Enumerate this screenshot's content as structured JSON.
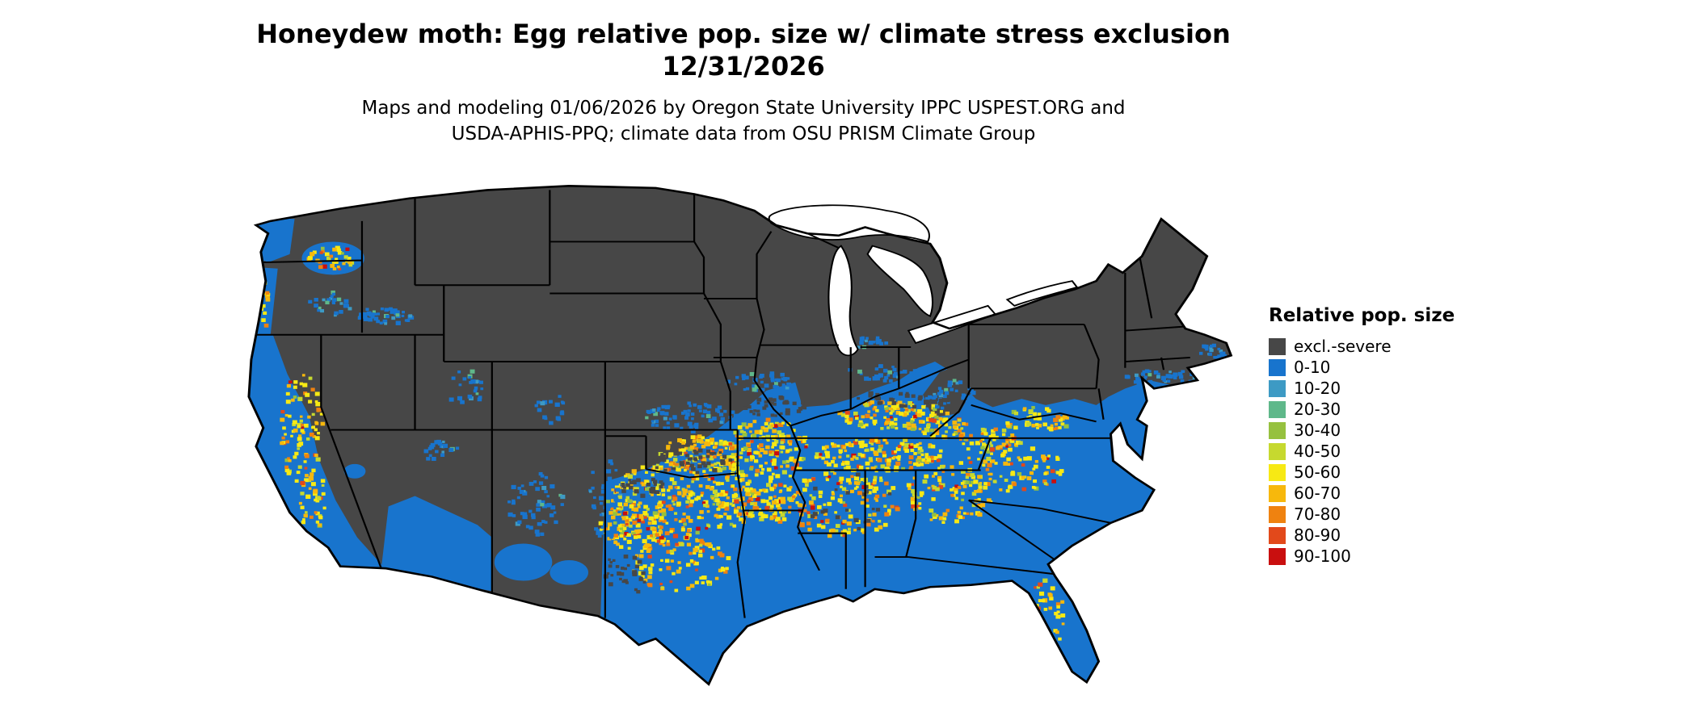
{
  "title": {
    "line1": "Honeydew moth: Egg relative pop. size w/ climate stress exclusion",
    "line2": "12/31/2026"
  },
  "subtitle": {
    "line1": "Maps and modeling 01/06/2026 by Oregon State University IPPC USPEST.ORG and",
    "line2": "USDA-APHIS-PPQ; climate data from OSU PRISM Climate Group"
  },
  "legend": {
    "title": "Relative pop. size",
    "entries": [
      {
        "label": "excl.-severe",
        "color": "#474747"
      },
      {
        "label": "0-10",
        "color": "#1874CD"
      },
      {
        "label": "10-20",
        "color": "#3D9AC4"
      },
      {
        "label": "20-30",
        "color": "#5FB88A"
      },
      {
        "label": "30-40",
        "color": "#96C13F"
      },
      {
        "label": "40-50",
        "color": "#C6D92F"
      },
      {
        "label": "50-60",
        "color": "#F7E914"
      },
      {
        "label": "60-70",
        "color": "#F7B80C"
      },
      {
        "label": "70-80",
        "color": "#EF8210"
      },
      {
        "label": "80-90",
        "color": "#E2491B"
      },
      {
        "label": "90-100",
        "color": "#C90F0F"
      }
    ]
  },
  "map": {
    "background": "#FFFFFF",
    "state_border_color": "#000000",
    "regions": [
      {
        "name": "northern-and-interior-western-us",
        "category": "excl.-severe"
      },
      {
        "name": "southern-and-southeastern-us",
        "category": "0-10"
      },
      {
        "name": "south-central-and-southeast-hotspots",
        "category": "40-100 speckled"
      },
      {
        "name": "pacific-coast-and-valleys",
        "category": "0-10 with 40-70 speckles"
      }
    ]
  }
}
